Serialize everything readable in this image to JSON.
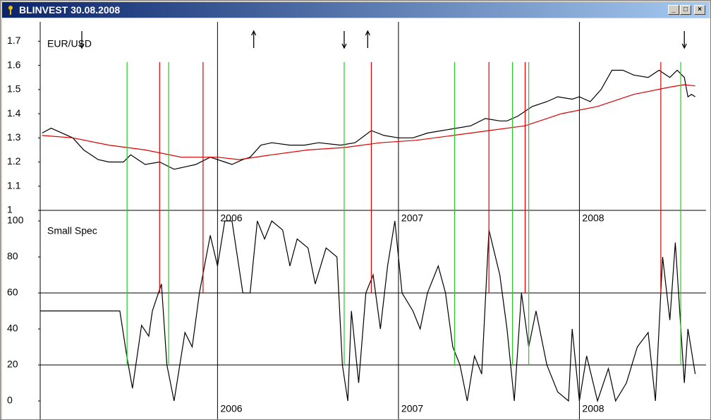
{
  "window": {
    "title": "BLINVEST  30.08.2008"
  },
  "chart_data": [
    {
      "type": "line",
      "xlim": [
        2005.02,
        2008.7
      ],
      "xticks": [
        2006,
        2007,
        2008
      ],
      "ylim": [
        1,
        1.78
      ],
      "yticks": [
        1,
        1.1,
        1.2,
        1.3,
        1.4,
        1.5,
        1.6,
        1.7
      ],
      "series": [
        {
          "name": "EUR/USD",
          "color": "#000000",
          "x": [
            2005.03,
            2005.08,
            2005.2,
            2005.26,
            2005.34,
            2005.4,
            2005.48,
            2005.52,
            2005.56,
            2005.6,
            2005.68,
            2005.76,
            2005.82,
            2005.88,
            2005.96,
            2006.04,
            2006.08,
            2006.14,
            2006.18,
            2006.24,
            2006.3,
            2006.4,
            2006.48,
            2006.56,
            2006.68,
            2006.76,
            2006.85,
            2006.92,
            2007.0,
            2007.08,
            2007.16,
            2007.24,
            2007.32,
            2007.4,
            2007.48,
            2007.56,
            2007.6,
            2007.66,
            2007.74,
            2007.82,
            2007.88,
            2007.96,
            2008.0,
            2008.06,
            2008.12,
            2008.18,
            2008.24,
            2008.3,
            2008.38,
            2008.44,
            2008.5,
            2008.54,
            2008.58,
            2008.6,
            2008.62,
            2008.64
          ],
          "values": [
            1.32,
            1.34,
            1.3,
            1.25,
            1.21,
            1.2,
            1.2,
            1.23,
            1.21,
            1.19,
            1.2,
            1.17,
            1.18,
            1.19,
            1.22,
            1.2,
            1.19,
            1.21,
            1.22,
            1.27,
            1.28,
            1.27,
            1.27,
            1.28,
            1.27,
            1.28,
            1.33,
            1.31,
            1.3,
            1.3,
            1.32,
            1.33,
            1.34,
            1.35,
            1.38,
            1.37,
            1.37,
            1.39,
            1.43,
            1.45,
            1.47,
            1.46,
            1.47,
            1.45,
            1.5,
            1.58,
            1.58,
            1.56,
            1.55,
            1.58,
            1.55,
            1.58,
            1.55,
            1.47,
            1.48,
            1.47
          ]
        },
        {
          "color": "#dd0000",
          "x": [
            2005.03,
            2005.2,
            2005.4,
            2005.6,
            2005.8,
            2006.0,
            2006.12,
            2006.3,
            2006.5,
            2006.7,
            2006.9,
            2007.1,
            2007.3,
            2007.5,
            2007.7,
            2007.9,
            2008.1,
            2008.3,
            2008.5,
            2008.58,
            2008.64
          ],
          "values": [
            1.31,
            1.3,
            1.27,
            1.25,
            1.22,
            1.22,
            1.21,
            1.23,
            1.25,
            1.26,
            1.28,
            1.29,
            1.31,
            1.33,
            1.35,
            1.4,
            1.43,
            1.48,
            1.51,
            1.52,
            1.515
          ]
        }
      ],
      "signal_lines": [
        {
          "color": "#22cc22",
          "x": [
            2005.5,
            2005.73,
            2006.7,
            2007.31,
            2007.63,
            2007.72,
            2008.56
          ]
        },
        {
          "color": "#dd0000",
          "x": [
            2005.68,
            2005.92,
            2006.85,
            2007.5,
            2007.7,
            2008.45
          ]
        }
      ],
      "arrows": [
        {
          "direction": "down",
          "x": 2005.25
        },
        {
          "direction": "up",
          "x": 2006.2
        },
        {
          "direction": "down",
          "x": 2006.7
        },
        {
          "direction": "up",
          "x": 2006.83
        },
        {
          "direction": "down",
          "x": 2008.58
        }
      ]
    },
    {
      "type": "line",
      "xlim": [
        2005.02,
        2008.7
      ],
      "xticks": [
        2006,
        2007,
        2008
      ],
      "ylim": [
        0,
        100
      ],
      "yticks": [
        0,
        20,
        40,
        60,
        80,
        100
      ],
      "grid_lines": [
        20,
        60
      ],
      "series": [
        {
          "name": "Small Spec",
          "color": "#000000",
          "x": [
            2005.02,
            2005.46,
            2005.5,
            2005.53,
            2005.58,
            2005.62,
            2005.64,
            2005.69,
            2005.72,
            2005.76,
            2005.82,
            2005.86,
            2005.9,
            2005.96,
            2006.0,
            2006.04,
            2006.08,
            2006.14,
            2006.18,
            2006.22,
            2006.26,
            2006.3,
            2006.36,
            2006.4,
            2006.44,
            2006.5,
            2006.54,
            2006.6,
            2006.66,
            2006.69,
            2006.72,
            2006.74,
            2006.78,
            2006.82,
            2006.86,
            2006.9,
            2006.94,
            2006.98,
            2007.02,
            2007.08,
            2007.12,
            2007.16,
            2007.22,
            2007.26,
            2007.3,
            2007.34,
            2007.38,
            2007.42,
            2007.46,
            2007.5,
            2007.56,
            2007.6,
            2007.64,
            2007.68,
            2007.72,
            2007.76,
            2007.82,
            2007.88,
            2007.94,
            2007.96,
            2008.0,
            2008.04,
            2008.1,
            2008.16,
            2008.2,
            2008.26,
            2008.32,
            2008.38,
            2008.42,
            2008.46,
            2008.5,
            2008.53,
            2008.58,
            2008.6,
            2008.64
          ],
          "values": [
            50,
            50,
            24,
            7,
            42,
            36,
            50,
            65,
            20,
            0,
            38,
            30,
            60,
            92,
            75,
            100,
            100,
            60,
            60,
            100,
            90,
            100,
            95,
            75,
            90,
            85,
            65,
            85,
            80,
            20,
            0,
            50,
            10,
            60,
            70,
            40,
            75,
            100,
            60,
            50,
            40,
            60,
            75,
            60,
            30,
            20,
            0,
            25,
            15,
            95,
            70,
            40,
            0,
            60,
            30,
            50,
            20,
            5,
            0,
            40,
            0,
            25,
            0,
            18,
            0,
            10,
            30,
            38,
            0,
            80,
            45,
            88,
            10,
            40,
            15
          ]
        }
      ]
    }
  ]
}
